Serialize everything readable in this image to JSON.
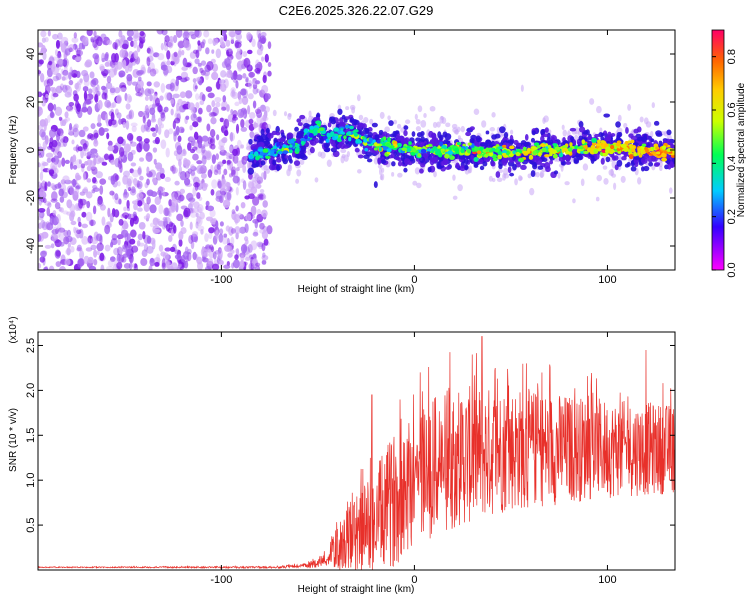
{
  "chart_data": [
    {
      "type": "heatmap",
      "title": "C2E6.2025.326.22.07.G29",
      "xlabel": "Height of straight line (km)",
      "ylabel": "Frequency (Hz)",
      "xlim": [
        -195,
        135
      ],
      "ylim": [
        -50,
        50
      ],
      "x_ticks": [
        -100,
        0,
        100
      ],
      "y_ticks": [
        -40,
        -20,
        0,
        20,
        40
      ],
      "colorbar": {
        "label": "Normalized spectral amplitude",
        "range": [
          0.0,
          0.9
        ],
        "ticks": [
          0.0,
          0.2,
          0.4,
          0.6,
          0.8
        ],
        "tick_labels": [
          "0.0",
          "0.2",
          "0.4",
          "0.6",
          "0.8"
        ],
        "colormap": "rainbow (magenta-blue-cyan-green-yellow-orange-red)"
      },
      "regions": [
        {
          "description": "scattered low-amplitude noise",
          "x_range": [
            -195,
            -75
          ],
          "freq_range": [
            -50,
            50
          ],
          "amplitude": 0.05
        },
        {
          "description": "tracked signal band",
          "x_range": [
            -85,
            135
          ],
          "freq_center_approx": 0,
          "freq_halfwidth": 5,
          "amplitude_range": [
            0.2,
            0.9
          ]
        }
      ],
      "track_points": [
        {
          "x": -85,
          "freq": -2
        },
        {
          "x": -70,
          "freq": 0
        },
        {
          "x": -60,
          "freq": 2
        },
        {
          "x": -50,
          "freq": 10
        },
        {
          "x": -45,
          "freq": 5
        },
        {
          "x": -35,
          "freq": 8
        },
        {
          "x": -25,
          "freq": 3
        },
        {
          "x": 0,
          "freq": 0
        },
        {
          "x": 50,
          "freq": -1
        },
        {
          "x": 100,
          "freq": 1
        },
        {
          "x": 135,
          "freq": -1
        }
      ]
    },
    {
      "type": "line",
      "xlabel": "Height of straight line (km)",
      "ylabel": "SNR (10 * v/v)",
      "yscale_label": "(x10⁴)",
      "xlim": [
        -195,
        135
      ],
      "ylim": [
        0,
        2.65
      ],
      "x_ticks": [
        -100,
        0,
        100
      ],
      "y_ticks": [
        0.5,
        1.0,
        1.5,
        2.0,
        2.5
      ],
      "y_tick_labels": [
        "0.5",
        "1.0",
        "1.5",
        "2.0",
        "2.5"
      ],
      "series": [
        {
          "name": "SNR",
          "color": "#e8302a",
          "envelope_points": [
            {
              "x": -195,
              "mean": 0.03,
              "spread": 0.005
            },
            {
              "x": -70,
              "mean": 0.03,
              "spread": 0.01
            },
            {
              "x": -55,
              "mean": 0.05,
              "spread": 0.03
            },
            {
              "x": -45,
              "mean": 0.12,
              "spread": 0.08
            },
            {
              "x": -40,
              "mean": 0.25,
              "spread": 0.25
            },
            {
              "x": -30,
              "mean": 0.4,
              "spread": 0.45
            },
            {
              "x": -20,
              "mean": 0.55,
              "spread": 0.6
            },
            {
              "x": -10,
              "mean": 0.8,
              "spread": 0.75
            },
            {
              "x": 0,
              "mean": 1.05,
              "spread": 0.8
            },
            {
              "x": 20,
              "mean": 1.25,
              "spread": 0.8
            },
            {
              "x": 50,
              "mean": 1.35,
              "spread": 0.7
            },
            {
              "x": 100,
              "mean": 1.35,
              "spread": 0.55
            },
            {
              "x": 135,
              "mean": 1.35,
              "spread": 0.5
            }
          ],
          "peaks": [
            {
              "x": -22,
              "value": 1.95
            },
            {
              "x": 3,
              "value": 2.2
            },
            {
              "x": 30,
              "value": 2.4
            },
            {
              "x": 35,
              "value": 2.6
            },
            {
              "x": 58,
              "value": 2.3
            },
            {
              "x": 120,
              "value": 2.45
            }
          ]
        }
      ]
    }
  ]
}
